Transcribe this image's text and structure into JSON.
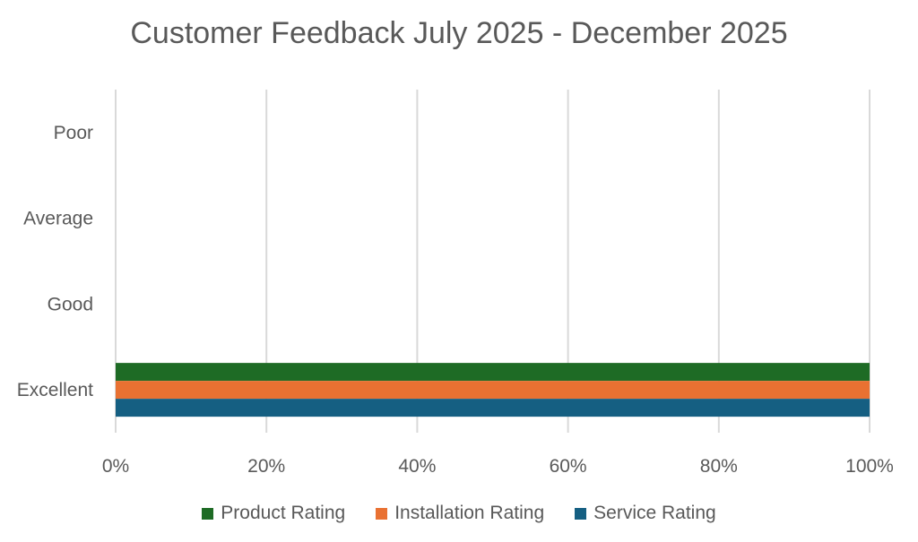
{
  "chart_data": {
    "type": "bar",
    "orientation": "horizontal",
    "stacked": "100%",
    "title": "Customer Feedback July 2025 - December 2025",
    "categories": [
      "Excellent",
      "Good",
      "Average",
      "Poor"
    ],
    "series": [
      {
        "name": "Product Rating",
        "color": "#1e6b25",
        "values": [
          100,
          0,
          0,
          0
        ]
      },
      {
        "name": "Installation Rating",
        "color": "#e97132",
        "values": [
          100,
          0,
          0,
          0
        ]
      },
      {
        "name": "Service Rating",
        "color": "#155f82",
        "values": [
          100,
          0,
          0,
          0
        ]
      }
    ],
    "xlim": [
      0,
      100
    ],
    "xticks": [
      "0%",
      "20%",
      "40%",
      "60%",
      "80%",
      "100%"
    ],
    "grid": true,
    "legend": "bottom",
    "xlabel": "",
    "ylabel": ""
  }
}
